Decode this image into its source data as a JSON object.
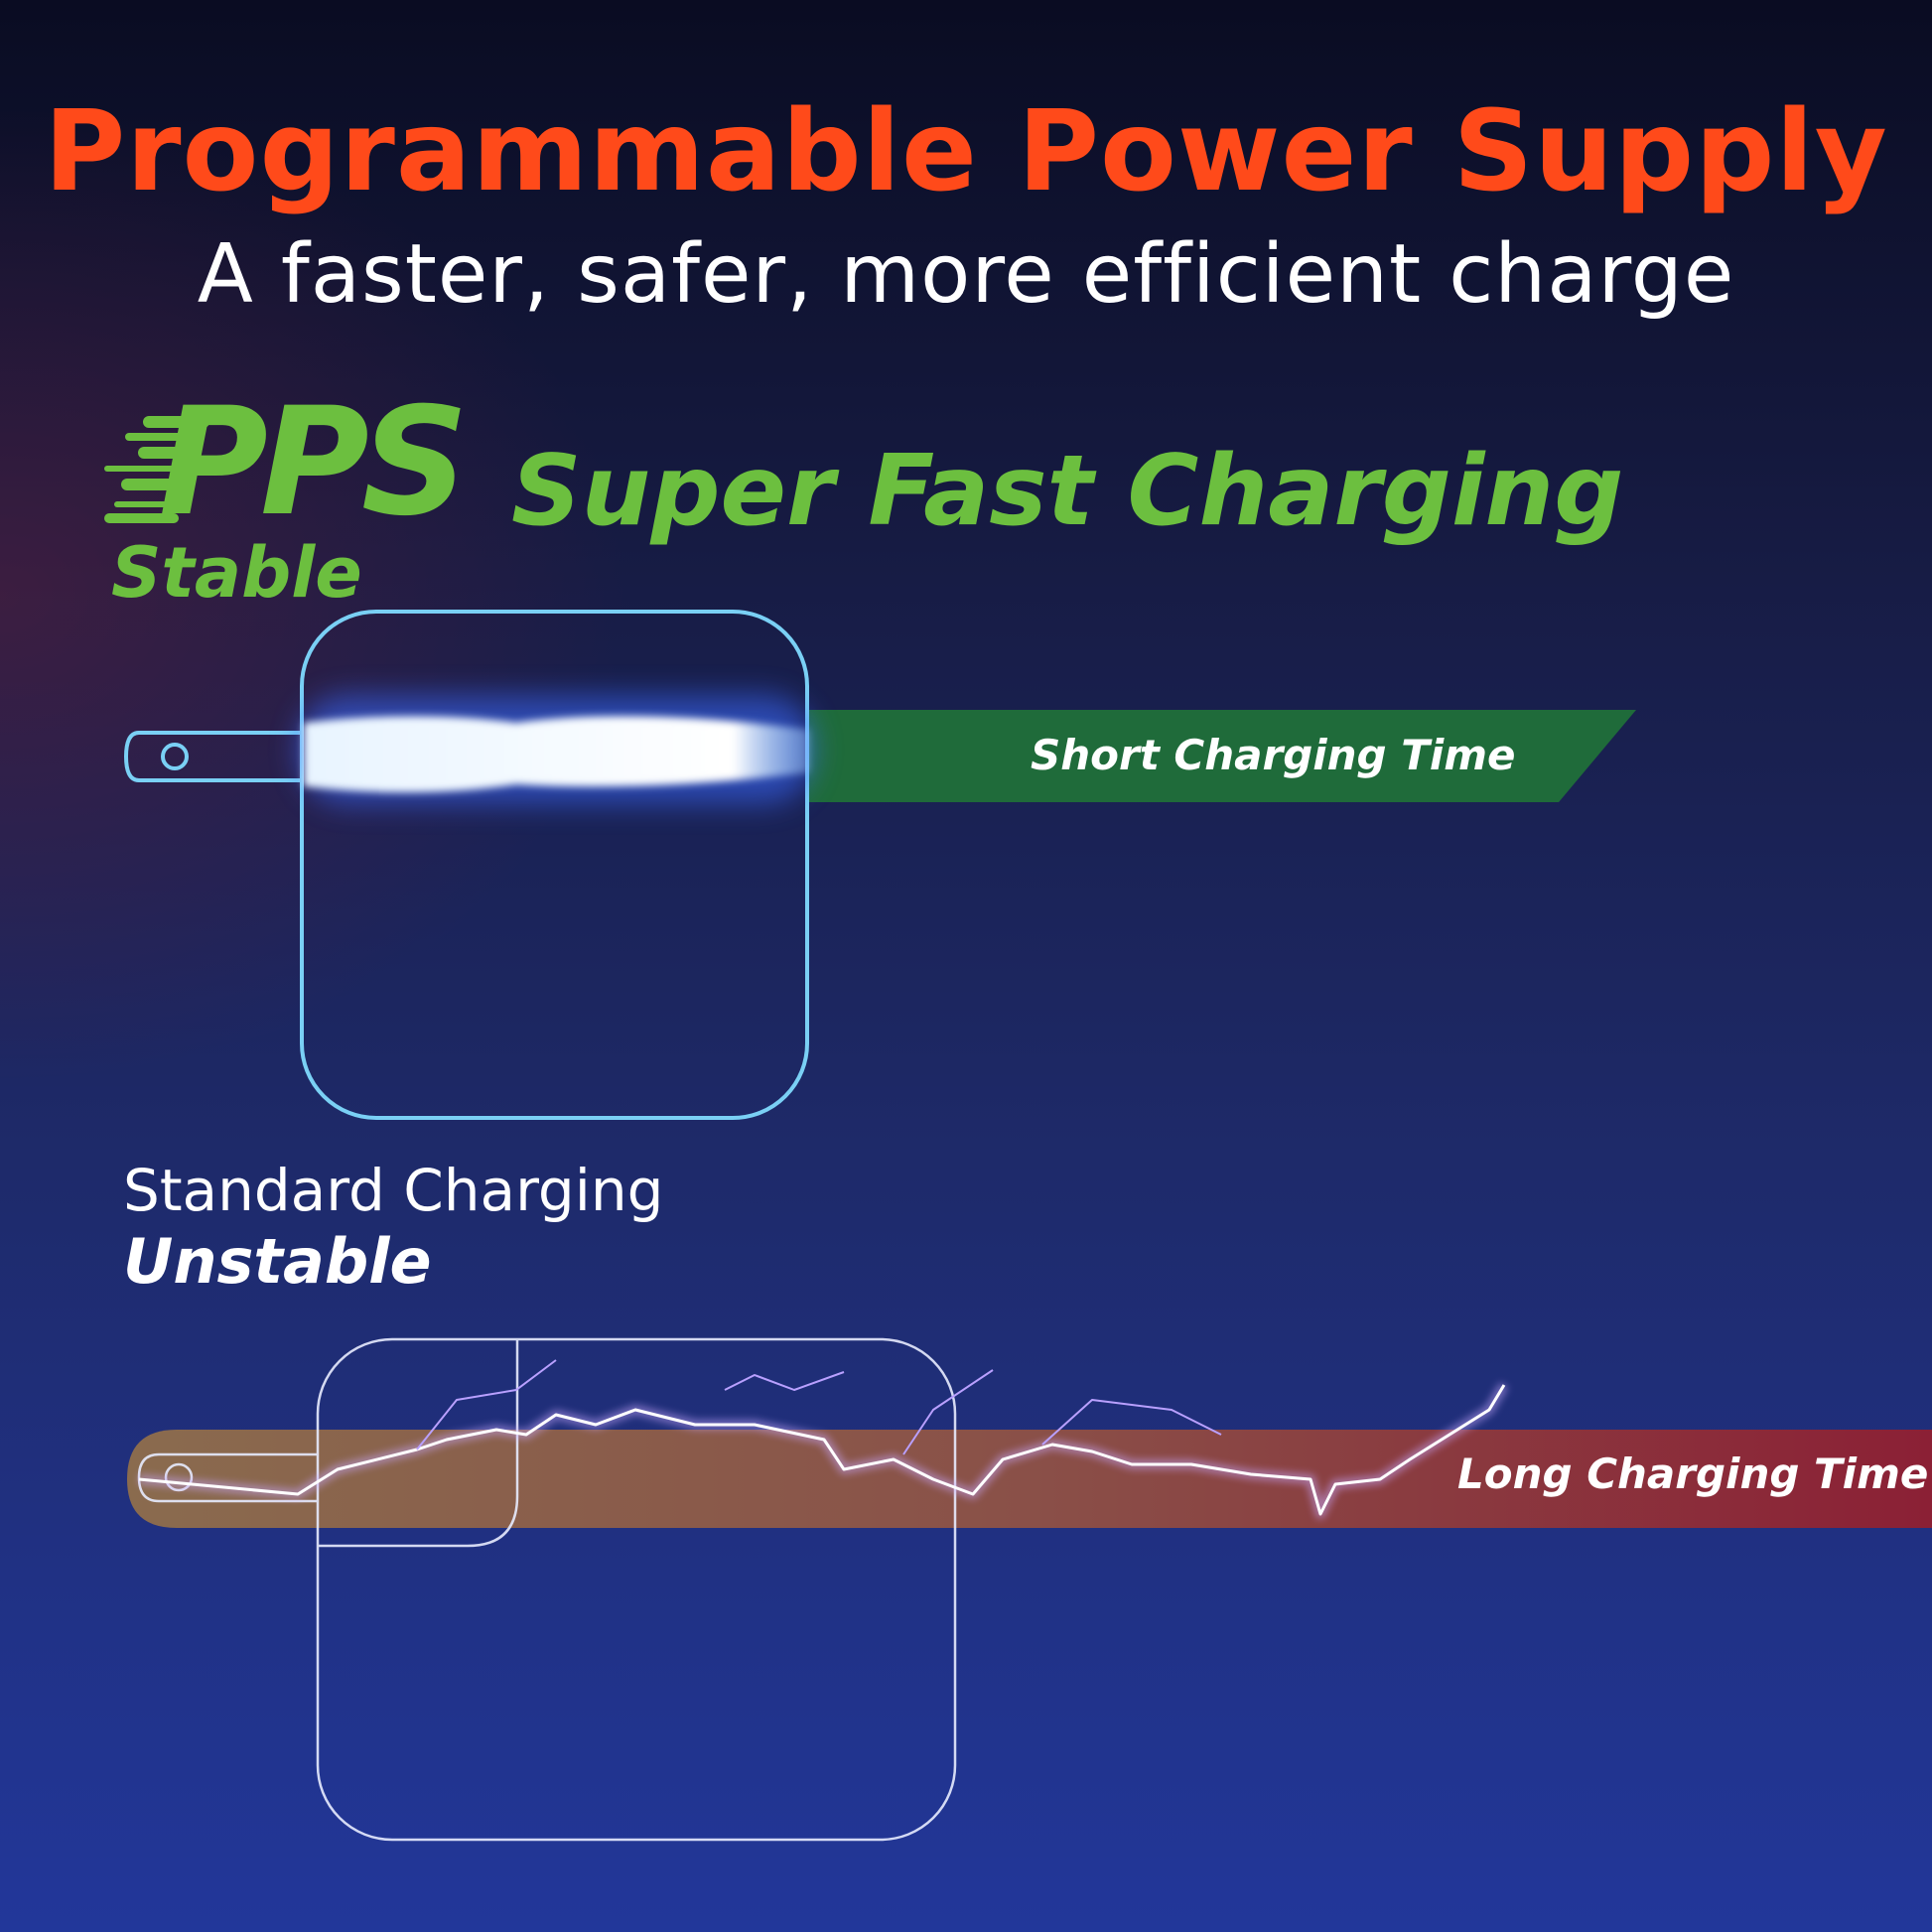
{
  "header": {
    "title": "Programmable Power Supply",
    "subtitle": "A faster, safer, more efficient charge"
  },
  "pps": {
    "logo": "PPS",
    "headline": "Super Fast Charging",
    "status": "Stable",
    "bar_label": "Short Charging Time",
    "bar_color": "#1f6b3a",
    "accent_color": "#6cbf3f"
  },
  "standard": {
    "heading": "Standard Charging",
    "status": "Unstable",
    "bar_label": "Long Charging Time",
    "bar_colors": [
      "#8a6b4e",
      "#8b2035"
    ]
  },
  "colors": {
    "title": "#ff4a1a",
    "charger_outline_pps": "#7ad0f5",
    "charger_outline_standard": "#ffffff"
  }
}
